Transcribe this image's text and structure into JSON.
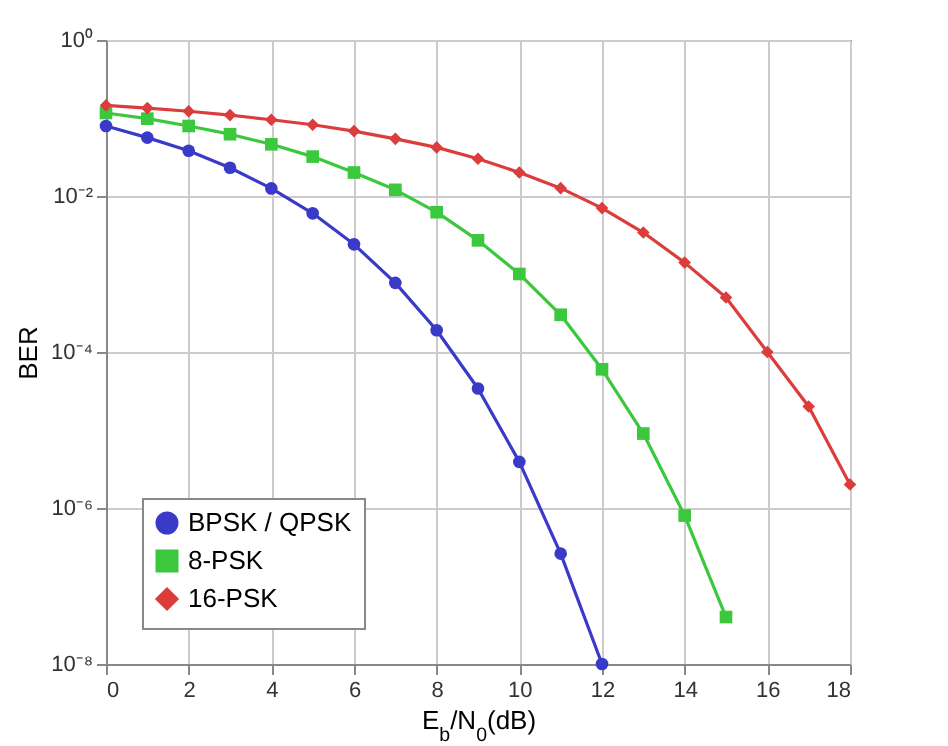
{
  "chart_data": {
    "type": "line",
    "xlabel": "E$_{b}$/N$_{0}$(dB)",
    "ylabel": "BER",
    "log": "y",
    "grid": true,
    "legend": "bottom left",
    "xlim": [
      0,
      18
    ],
    "xticks": [
      0,
      2,
      4,
      6,
      8,
      10,
      12,
      14,
      16,
      18
    ],
    "ylim": [
      1e-08,
      1
    ],
    "yticks": [
      {
        "value": 1,
        "label": "10⁰"
      },
      {
        "value": 0.01,
        "label": "10⁻²"
      },
      {
        "value": 0.0001,
        "label": "10⁻⁴"
      },
      {
        "value": 1e-06,
        "label": "10⁻⁶"
      },
      {
        "value": 1e-08,
        "label": "10⁻⁸"
      }
    ],
    "series": [
      {
        "name": "BPSK / QPSK",
        "color": "#3a3ac8",
        "marker": "circle",
        "x": [
          0,
          1,
          2,
          3,
          4,
          5,
          6,
          7,
          8,
          9,
          10,
          11,
          12
        ],
        "values": [
          0.079,
          0.056,
          0.038,
          0.023,
          0.0125,
          0.006,
          0.0024,
          0.00077,
          0.00019,
          3.4e-05,
          3.9e-06,
          2.6e-07,
          1e-08
        ]
      },
      {
        "name": "8-PSK",
        "color": "#3cc83c",
        "marker": "square",
        "x": [
          0,
          1,
          2,
          3,
          4,
          5,
          6,
          7,
          8,
          9,
          10,
          11,
          12,
          13,
          14,
          15
        ],
        "values": [
          0.116,
          0.098,
          0.079,
          0.062,
          0.046,
          0.032,
          0.02,
          0.012,
          0.0062,
          0.0027,
          0.001,
          0.0003,
          6e-05,
          9e-06,
          8e-07,
          4e-08
        ]
      },
      {
        "name": "16-PSK",
        "color": "#dc3c3c",
        "marker": "diamond",
        "x": [
          0,
          1,
          2,
          3,
          4,
          5,
          6,
          7,
          8,
          9,
          10,
          11,
          12,
          13,
          14,
          15,
          16,
          17,
          18
        ],
        "values": [
          0.145,
          0.134,
          0.122,
          0.109,
          0.095,
          0.082,
          0.068,
          0.054,
          0.042,
          0.03,
          0.02,
          0.0126,
          0.007,
          0.0034,
          0.0014,
          0.0005,
          0.0001,
          2e-05,
          2e-06
        ]
      }
    ]
  }
}
